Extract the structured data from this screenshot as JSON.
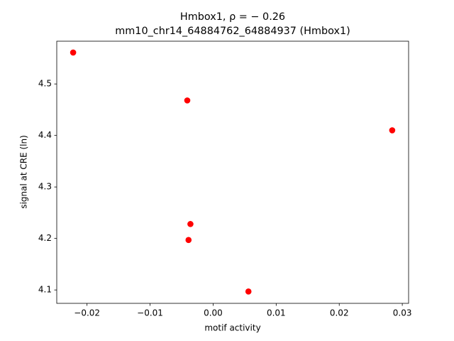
{
  "chart_data": {
    "type": "scatter",
    "title": "Hmbox1, ρ = − 0.26",
    "subtitle": "mm10_chr14_64884762_64884937 (Hmbox1)",
    "x_label": "motif activity",
    "y_label": "signal at CRE (ln)",
    "color": "#ff0000",
    "x": [
      -0.0222,
      -0.0041,
      0.0284,
      -0.0036,
      -0.0039,
      0.0056
    ],
    "values": [
      4.561,
      4.468,
      4.41,
      4.228,
      4.197,
      4.097
    ],
    "xlim": [
      -0.0248,
      0.031
    ],
    "ylim": [
      4.074,
      4.583
    ],
    "xticks": [
      {
        "value": -0.02,
        "label": "−0.02"
      },
      {
        "value": -0.01,
        "label": "−0.01"
      },
      {
        "value": 0,
        "label": "0.00"
      },
      {
        "value": 0.01,
        "label": "0.01"
      },
      {
        "value": 0.02,
        "label": "0.02"
      },
      {
        "value": 0.03,
        "label": "0.03"
      }
    ],
    "yticks": [
      4.1,
      4.2,
      4.3,
      4.4,
      4.5
    ],
    "grid": false
  }
}
